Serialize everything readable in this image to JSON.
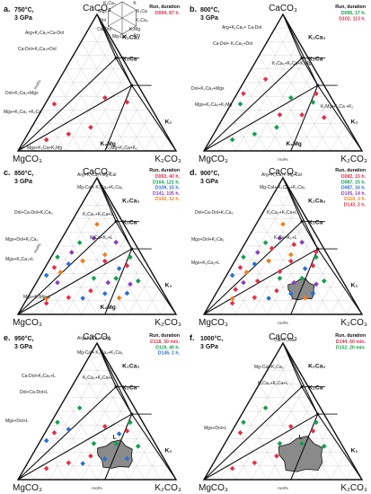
{
  "legend": {
    "labels": [
      "L",
      "K",
      "K₂Ca",
      "K₂Ca₃",
      "K₂Mg",
      "Arg",
      "Mg-Cal",
      "Ca-Dol",
      "Dol",
      "Mgs",
      "K₂Ca₄"
    ]
  },
  "colors": {
    "frame": "#111111",
    "grid": "#c9c9c9",
    "melt": "#8a8a8a",
    "red": "#e0304a",
    "green": "#10a050",
    "blue": "#2a6fd6",
    "purple": "#8a3fc0",
    "orange": "#ef7d16"
  },
  "panels": [
    {
      "letter": "a.",
      "temp": "750°C,",
      "pressure": "3 GPa",
      "top": "CaCO₃",
      "left": "MgCO₃",
      "right": "K₂CO₃",
      "run_header": "Run, duration",
      "runs": [
        {
          "text": "D094, 87 h.",
          "color": "#e0304a"
        }
      ],
      "axis_label": "mol%",
      "phase_labels": [
        {
          "text": "K₂Ca₃",
          "key": "k2ca3"
        },
        {
          "text": "K₂Ca",
          "key": "k2ca"
        },
        {
          "text": "K₂Mg",
          "key": "k2mg"
        },
        {
          "text": "K₂",
          "key": "k2"
        }
      ],
      "field_labels": [
        "Arg+K₂Ca₃+Ca-Dol",
        "Ca-Dol+K₂Ca₃+Dol",
        "Dol+K₂Ca₃+Mgs",
        "Mgs+K₂Ca₃ +K₂Ca",
        "Mgs+K₂Ca+K₂Mg",
        "K₂Mg+K₂Ca+K₂"
      ]
    },
    {
      "letter": "b.",
      "temp": "800°C,",
      "pressure": "3 GPa",
      "top": "CaCO₃",
      "left": "MgCO₃",
      "right": "K₂CO₃",
      "run_header": "Run, duration",
      "runs": [
        {
          "text": "D095, 17 h.",
          "color": "#10a050"
        },
        {
          "text": "D102, 113 h.",
          "color": "#e0304a"
        }
      ],
      "axis_label": "mol%",
      "phase_labels": [
        {
          "text": "K₂Ca₃",
          "key": "k2ca3"
        },
        {
          "text": "K₂Ca",
          "key": "k2ca"
        },
        {
          "text": "K₂Mg",
          "key": "k2mg"
        },
        {
          "text": "K₂",
          "key": "k2"
        }
      ],
      "field_labels": [
        "Arg+K₂Ca₃+ Ca-Dol",
        "Ca-Dol+ K₂Ca₃+Dol",
        "K₂Ca₃+K₂Ca+K₂Mg",
        "Dol+K₂Ca₃+Mgs",
        "Mgs+K₂Ca₃+K₂Mg",
        "K₂Mg+K₂Ca +K₂"
      ]
    },
    {
      "letter": "c.",
      "temp": "850°C,",
      "pressure": "3 GPa",
      "top": "CaCO₃",
      "left": "MgCO₃",
      "right": "K₂CO₃",
      "run_header": "Run, duration",
      "runs": [
        {
          "text": "D093, 40 h.",
          "color": "#e0304a"
        },
        {
          "text": "D104, 121 h.",
          "color": "#10a050"
        },
        {
          "text": "D109, 15 h.",
          "color": "#2a6fd6"
        },
        {
          "text": "D141, 105 h.",
          "color": "#8a3fc0"
        },
        {
          "text": "D143, 12 h.",
          "color": "#ef7d16"
        }
      ],
      "axis_label": "mol%",
      "phase_labels": [
        {
          "text": "K₂Ca₃",
          "key": "k2ca3"
        },
        {
          "text": "K₂Ca",
          "key": "k2ca"
        },
        {
          "text": "K₂Mg",
          "key": "k2mg"
        },
        {
          "text": "K₂",
          "key": "k2"
        }
      ],
      "field_labels": [
        "Arg+K₂Ca₃+Mg-Cal",
        "Mg-Cal+ K₂Ca₄+K₂Ca₃",
        "Dol+Ca-Dol+K₂Ca₃",
        "K₂Ca₃+K₂Ca+L",
        "Mgs+Dol+K₂Ca₃",
        "K₂Ca+K₂+L",
        "Mgs+K₂Ca₃+L",
        "Mgs+K₂Mg+L"
      ]
    },
    {
      "letter": "d.",
      "temp": "900°C,",
      "pressure": "3 GPa",
      "top": "CaCO₃",
      "left": "MgCO₃",
      "right": "K₂CO₃",
      "run_header": "Run, duration",
      "runs": [
        {
          "text": "D082, 15 h.",
          "color": "#e0304a"
        },
        {
          "text": "D087, 15 h.",
          "color": "#10a050"
        },
        {
          "text": "D087, 16 h.",
          "color": "#2a6fd6"
        },
        {
          "text": "D105, 14 h.",
          "color": "#8a3fc0"
        },
        {
          "text": "D110, 3 h.",
          "color": "#ef7d16"
        },
        {
          "text": "D143, 2 h.",
          "color": "#e0304a"
        }
      ],
      "axis_label": "mol%",
      "phase_labels": [
        {
          "text": "K₂Ca₃",
          "key": "k2ca3"
        },
        {
          "text": "K₂Ca",
          "key": "k2ca"
        },
        {
          "text": "K₂",
          "key": "k2"
        }
      ],
      "field_labels": [
        "Arg+K₂Ca₃+ Mg-Cal",
        "Mg-Cal+ K₂Ca₄+K₂Ca₃",
        "Dol+Ca-Dol+K₂Ca₃",
        "K₂Ca₃+K₂Ca+L",
        "Mgs+Dol+K₂Ca₃",
        "K₂Ca+K₂+L",
        "Mgs+K₂Ca₃+L"
      ]
    },
    {
      "letter": "e.",
      "temp": "950°C,",
      "pressure": "3 GPa",
      "top": "CaCO₃",
      "left": "MgCO₃",
      "right": "K₂CO₃",
      "run_header": "Run, duration",
      "runs": [
        {
          "text": "D118, 30 min.",
          "color": "#e0304a"
        },
        {
          "text": "D119, 40 h.",
          "color": "#10a050"
        },
        {
          "text": "D145, 1 h.",
          "color": "#2a6fd6"
        }
      ],
      "axis_label": "mol%",
      "phase_labels": [
        {
          "text": "K₂Ca₃",
          "key": "k2ca3"
        },
        {
          "text": "K₂Ca",
          "key": "k2ca"
        },
        {
          "text": "L",
          "key": "melt"
        },
        {
          "text": "K₂",
          "key": "k2"
        }
      ],
      "field_labels": [
        "Arg+K₂Ca₄+ Cal",
        "Mg-Cal+ K₂Ca₄+K₂Ca₃",
        "Ca-Dol+K₂Ca₃+L",
        "K₂Ca₃+K₂Ca+L",
        "Dol+Ca-Dol+L",
        "Mgs+Dol+L"
      ]
    },
    {
      "letter": "f.",
      "temp": "1000°C,",
      "pressure": "3 GPa",
      "top": "CaCO₃",
      "left": "MgCO₃",
      "right": "K₂CO₃",
      "run_header": "Run, duration",
      "runs": [
        {
          "text": "D144, 60 min.",
          "color": "#e0304a"
        },
        {
          "text": "D152, 20 min.",
          "color": "#10a050"
        }
      ],
      "axis_label": "mol%",
      "phase_labels": [
        {
          "text": "K₂Ca₃",
          "key": "k2ca3"
        },
        {
          "text": "K₂Ca",
          "key": "k2ca"
        },
        {
          "text": "L",
          "key": "melt"
        },
        {
          "text": "K₂",
          "key": "k2"
        }
      ],
      "field_labels": [
        "Cal+K₂Ca₄",
        "Mg-Cal+K₂Ca₃",
        "K₂Ca₃+K₂Ca+L",
        "Mgs+Dol+L"
      ]
    }
  ]
}
